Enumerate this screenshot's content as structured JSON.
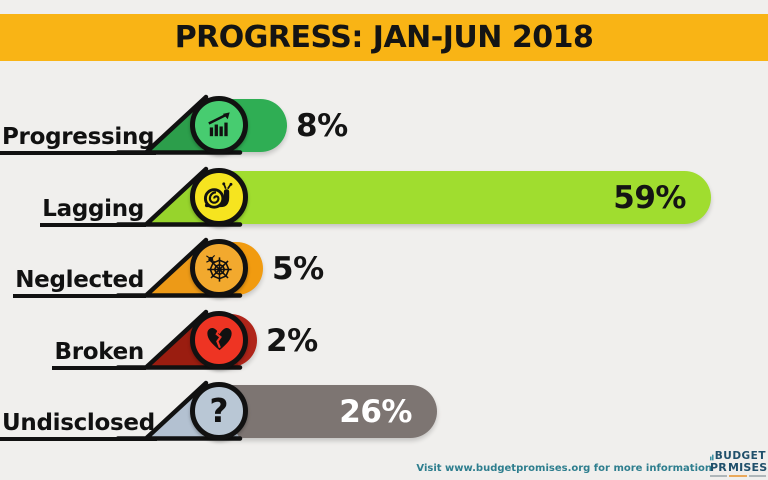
{
  "header": {
    "title": "PROGRESS: JAN-JUN 2018",
    "band_color": "#f9b415",
    "text_color": "#141414"
  },
  "chart_data": {
    "type": "bar",
    "orientation": "horizontal",
    "title": "PROGRESS: JAN-JUN 2018",
    "categories": [
      "Progressing",
      "Lagging",
      "Neglected",
      "Broken",
      "Undisclosed"
    ],
    "values": [
      8,
      59,
      5,
      2,
      26
    ],
    "value_labels": [
      "8%",
      "59%",
      "5%",
      "2%",
      "26%"
    ],
    "unit": "%",
    "xlim": [
      0,
      100
    ],
    "grid": false,
    "legend": false
  },
  "rows": [
    {
      "label": "Progressing",
      "value_label": "8%",
      "icon": "growth-chart-icon",
      "bar_color": "#2fae54",
      "circle_color": "#47cc70",
      "triangle_color": "#2c9e4b",
      "pct_color": "#141414",
      "pct_inside": false
    },
    {
      "label": "Lagging",
      "value_label": "59%",
      "icon": "snail-icon",
      "bar_color": "#a0dd2f",
      "circle_color": "#f6e41f",
      "triangle_color": "#97d42c",
      "pct_color": "#141414",
      "pct_inside": true
    },
    {
      "label": "Neglected",
      "value_label": "5%",
      "icon": "spider-web-icon",
      "bar_color": "#f19b10",
      "circle_color": "#f2a92e",
      "triangle_color": "#ed9a17",
      "pct_color": "#141414",
      "pct_inside": false
    },
    {
      "label": "Broken",
      "value_label": "2%",
      "icon": "broken-heart-icon",
      "bar_color": "#b0251a",
      "circle_color": "#ee3423",
      "triangle_color": "#9a1d10",
      "pct_color": "#141414",
      "pct_inside": false
    },
    {
      "label": "Undisclosed",
      "value_label": "26%",
      "icon": "question-mark-icon",
      "bar_color": "#7d7572",
      "circle_color": "#b9c7d5",
      "triangle_color": "#b3c1d1",
      "pct_color": "#ffffff",
      "pct_inside": true,
      "glyph": "?"
    }
  ],
  "footer": {
    "note": "Visit www.budgetpromises.org for more information",
    "note_color": "#2e7e8e",
    "logo": {
      "line1": "BUDGET",
      "line2_pre": "PR",
      "line2_post": "MISES",
      "text_color": "#20506b",
      "accent_color": "#e8922a",
      "bars_color": "#3a8fa3"
    }
  }
}
